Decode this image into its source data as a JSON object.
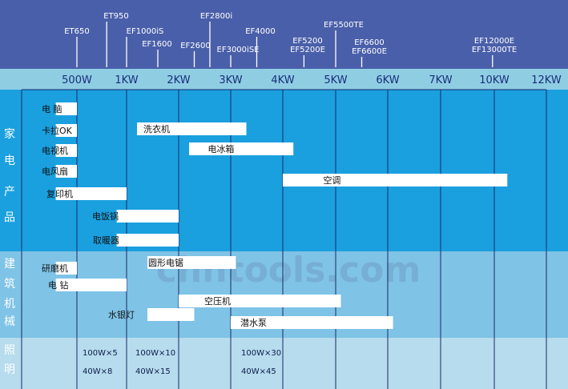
{
  "watermark": "chntools.com",
  "colors": {
    "header": "#4a5fa9",
    "power_band": "#8fcde3",
    "home": "#1aa0df",
    "construction": "#7fc3e6",
    "lighting": "#b6dced",
    "grid": "#1b2a6b",
    "bar": "#ffffff"
  },
  "chart_data": {
    "type": "gantt",
    "title": "",
    "xlabel": "",
    "ylabel": "",
    "power_ticks": [
      {
        "label": "500W",
        "kw": 0.5
      },
      {
        "label": "1KW",
        "kw": 1
      },
      {
        "label": "2KW",
        "kw": 2
      },
      {
        "label": "3KW",
        "kw": 3
      },
      {
        "label": "4KW",
        "kw": 4
      },
      {
        "label": "5KW",
        "kw": 5
      },
      {
        "label": "6KW",
        "kw": 6
      },
      {
        "label": "7KW",
        "kw": 7
      },
      {
        "label": "10KW",
        "kw": 10
      },
      {
        "label": "12KW",
        "kw": 12
      }
    ],
    "models": [
      {
        "label": "ET650",
        "kw": 0.5
      },
      {
        "label": "ET950",
        "kw": 0.8
      },
      {
        "label": "EF1000iS",
        "kw": 1.0
      },
      {
        "label": "EF1600",
        "kw": 1.6
      },
      {
        "label": "EF2600",
        "kw": 2.3
      },
      {
        "label": "EF2800i",
        "kw": 2.6
      },
      {
        "label": "EF3000iSE",
        "kw": 3.0
      },
      {
        "label": "EF4000",
        "kw": 3.5
      },
      {
        "label": "EF5200\nEF5200E",
        "kw": 4.4
      },
      {
        "label": "EF5500TE",
        "kw": 5.0
      },
      {
        "label": "EF6600\nEF6600E",
        "kw": 5.5
      },
      {
        "label": "EF12000E\nEF13000TE",
        "kw": 9.9
      }
    ],
    "sections": [
      {
        "key": "home",
        "label": "家电产品",
        "items": [
          {
            "label": "电  脑",
            "start": 0.3,
            "end": 0.5
          },
          {
            "label": "洗衣机",
            "start": 1.2,
            "end": 3.3
          },
          {
            "label": "卡拉OK",
            "start": 0.3,
            "end": 0.5
          },
          {
            "label": "电冰箱",
            "start": 2.2,
            "end": 4.2
          },
          {
            "label": "电视机",
            "start": 0.3,
            "end": 0.5
          },
          {
            "label": "电风扇",
            "start": 0.3,
            "end": 0.5
          },
          {
            "label": "空调",
            "start": 4.0,
            "end": 10.5
          },
          {
            "label": "复印机",
            "start": 0.3,
            "end": 1.0
          },
          {
            "label": "电饭锅",
            "start": 0.9,
            "end": 2.0
          },
          {
            "label": "取暖器",
            "start": 0.9,
            "end": 2.0
          }
        ]
      },
      {
        "key": "construction",
        "label": "建筑机械",
        "items": [
          {
            "label": "圆形电锯",
            "start": 1.4,
            "end": 3.1
          },
          {
            "label": "研磨机",
            "start": 0.3,
            "end": 0.5
          },
          {
            "label": "电  钻",
            "start": 0.3,
            "end": 1.0
          },
          {
            "label": "空压机",
            "start": 2.0,
            "end": 5.1
          },
          {
            "label": "水银灯",
            "start": 1.4,
            "end": 2.3
          },
          {
            "label": "潜水泵",
            "start": 3.0,
            "end": 6.1
          }
        ]
      },
      {
        "key": "lighting",
        "label": "照明",
        "items": [
          {
            "label": "100W×5",
            "col": 1,
            "row": 1
          },
          {
            "label": "100W×10",
            "col": 2,
            "row": 1
          },
          {
            "label": "100W×30",
            "col": 3,
            "row": 1
          },
          {
            "label": "40W×8",
            "col": 1,
            "row": 2
          },
          {
            "label": "40W×15",
            "col": 2,
            "row": 2
          },
          {
            "label": "40W×45",
            "col": 3,
            "row": 2
          }
        ]
      }
    ]
  }
}
